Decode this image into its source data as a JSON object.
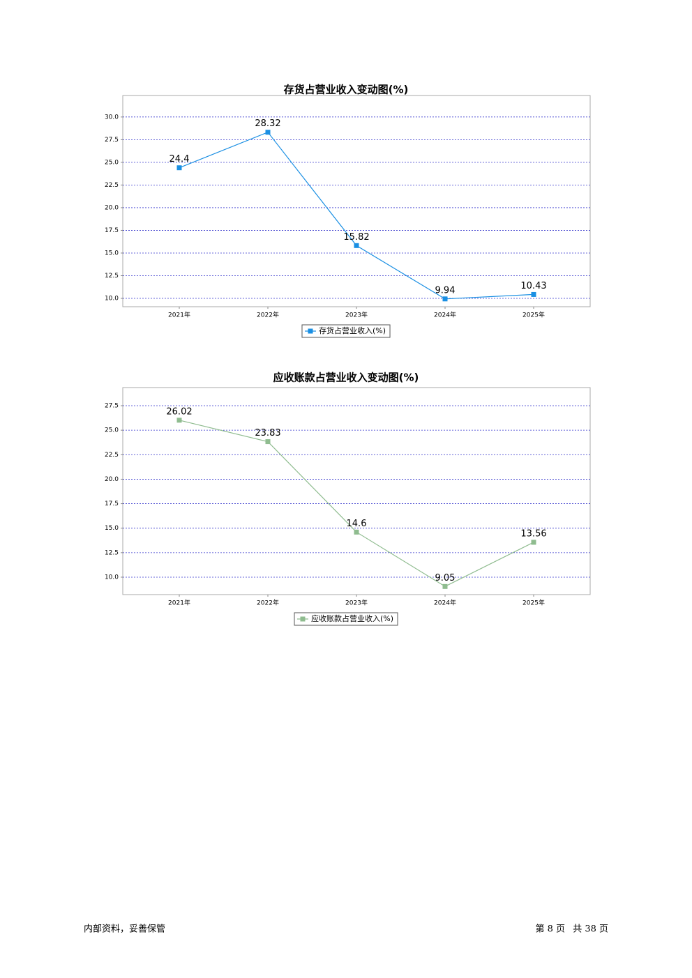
{
  "chart_data": [
    {
      "type": "line",
      "title": "存货占营业收入变动图(%)",
      "categories": [
        "2021年",
        "2022年",
        "2023年",
        "2024年",
        "2025年"
      ],
      "series": [
        {
          "name": "存货占营业收入(%)",
          "color": "#1a8fe3",
          "values": [
            24.4,
            28.32,
            15.82,
            9.94,
            10.43
          ]
        }
      ],
      "ylim": [
        9.08,
        32.37
      ],
      "yticks": [
        {
          "value": 10,
          "label": "10.0"
        },
        {
          "value": 12.5,
          "label": "12.5"
        },
        {
          "value": 15,
          "label": "15.0"
        },
        {
          "value": 17.5,
          "label": "17.5"
        },
        {
          "value": 20,
          "label": "20.0"
        },
        {
          "value": 22.5,
          "label": "22.5"
        },
        {
          "value": 25,
          "label": "25.0"
        },
        {
          "value": 27.5,
          "label": "27.5"
        },
        {
          "value": 30,
          "label": "30.0"
        }
      ],
      "grid": true
    },
    {
      "type": "line",
      "title": "应收账款占营业收入变动图(%)",
      "categories": [
        "2021年",
        "2022年",
        "2023年",
        "2024年",
        "2025年"
      ],
      "series": [
        {
          "name": "应收账款占营业收入(%)",
          "color": "#8fbc8f",
          "values": [
            26.02,
            23.83,
            14.6,
            9.05,
            13.56
          ]
        }
      ],
      "ylim": [
        8.22,
        29.35
      ],
      "yticks": [
        {
          "value": 10,
          "label": "10.0"
        },
        {
          "value": 12.5,
          "label": "12.5"
        },
        {
          "value": 15,
          "label": "15.0"
        },
        {
          "value": 17.5,
          "label": "17.5"
        },
        {
          "value": 20,
          "label": "20.0"
        },
        {
          "value": 22.5,
          "label": "22.5"
        },
        {
          "value": 25,
          "label": "25.0"
        },
        {
          "value": 27.5,
          "label": "27.5"
        }
      ],
      "grid": true
    }
  ],
  "footer": {
    "note": "内部资料，妥善保管",
    "page": "第 8 页",
    "total": "共 38 页"
  }
}
